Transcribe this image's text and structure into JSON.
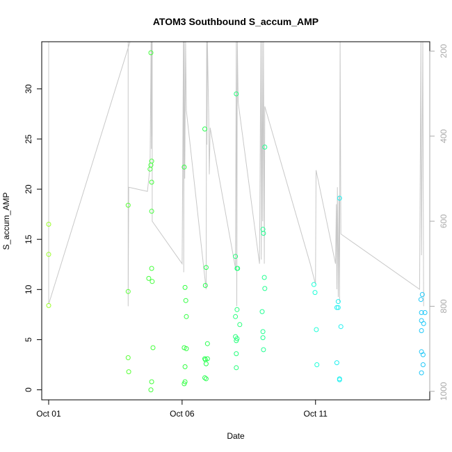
{
  "chart_data": {
    "type": "scatter",
    "title": "ATOM3 Southbound S_accum_AMP",
    "xlabel": "Date",
    "ylabel": "S_accum_AMP",
    "x_ticks": [
      {
        "label": "Oct 01",
        "value": 0
      },
      {
        "label": "Oct 06",
        "value": 5
      },
      {
        "label": "Oct 11",
        "value": 10
      }
    ],
    "y_ticks": [
      0,
      5,
      10,
      15,
      20,
      25,
      30
    ],
    "y2_ticks": [
      200,
      400,
      600,
      800,
      1000
    ],
    "xlim": [
      -0.26,
      14.28
    ],
    "ylim": [
      -1.0,
      34.7
    ],
    "y2lim": [
      1020,
      178
    ],
    "grid": false,
    "legend": "none",
    "points": [
      {
        "x": 0.0,
        "y": 16.5,
        "color": "#9aff28"
      },
      {
        "x": 0.0,
        "y": 13.5,
        "color": "#9aff28"
      },
      {
        "x": 0.0,
        "y": 8.4,
        "color": "#9aff28"
      },
      {
        "x": 2.98,
        "y": 18.4,
        "color": "#5aff38"
      },
      {
        "x": 2.98,
        "y": 9.8,
        "color": "#5aff38"
      },
      {
        "x": 2.98,
        "y": 3.2,
        "color": "#5aff38"
      },
      {
        "x": 3.0,
        "y": 1.8,
        "color": "#5aff38"
      },
      {
        "x": 3.83,
        "y": 33.6,
        "color": "#44ff3c"
      },
      {
        "x": 3.86,
        "y": 22.8,
        "color": "#44ff3c"
      },
      {
        "x": 3.83,
        "y": 22.4,
        "color": "#44ff3c"
      },
      {
        "x": 3.8,
        "y": 22.0,
        "color": "#44ff3c"
      },
      {
        "x": 3.86,
        "y": 20.7,
        "color": "#44ff3c"
      },
      {
        "x": 3.86,
        "y": 17.8,
        "color": "#44ff3c"
      },
      {
        "x": 3.86,
        "y": 12.1,
        "color": "#44ff3c"
      },
      {
        "x": 3.75,
        "y": 11.1,
        "color": "#44ff3c"
      },
      {
        "x": 3.88,
        "y": 10.8,
        "color": "#44ff3c"
      },
      {
        "x": 3.91,
        "y": 4.2,
        "color": "#44ff3c"
      },
      {
        "x": 3.86,
        "y": 0.8,
        "color": "#44ff3c"
      },
      {
        "x": 3.83,
        "y": 0.0,
        "color": "#44ff3c"
      },
      {
        "x": 5.08,
        "y": 22.2,
        "color": "#30ff40"
      },
      {
        "x": 5.11,
        "y": 10.2,
        "color": "#30ff40"
      },
      {
        "x": 5.14,
        "y": 8.9,
        "color": "#30ff40"
      },
      {
        "x": 5.16,
        "y": 7.3,
        "color": "#30ff40"
      },
      {
        "x": 5.08,
        "y": 4.2,
        "color": "#30ff40"
      },
      {
        "x": 5.16,
        "y": 4.1,
        "color": "#30ff40"
      },
      {
        "x": 5.11,
        "y": 2.3,
        "color": "#30ff40"
      },
      {
        "x": 5.11,
        "y": 0.8,
        "color": "#30ff40"
      },
      {
        "x": 5.08,
        "y": 0.6,
        "color": "#30ff40"
      },
      {
        "x": 5.85,
        "y": 26.0,
        "color": "#28ff50"
      },
      {
        "x": 5.9,
        "y": 12.2,
        "color": "#28ff50"
      },
      {
        "x": 5.87,
        "y": 10.4,
        "color": "#28ff50"
      },
      {
        "x": 5.95,
        "y": 4.6,
        "color": "#28ff50"
      },
      {
        "x": 5.85,
        "y": 3.1,
        "color": "#28ff50"
      },
      {
        "x": 5.87,
        "y": 3.0,
        "color": "#28ff50"
      },
      {
        "x": 5.95,
        "y": 3.1,
        "color": "#28ff50"
      },
      {
        "x": 5.9,
        "y": 2.6,
        "color": "#28ff50"
      },
      {
        "x": 5.85,
        "y": 1.2,
        "color": "#28ff50"
      },
      {
        "x": 5.9,
        "y": 1.1,
        "color": "#28ff50"
      },
      {
        "x": 7.03,
        "y": 29.5,
        "color": "#24ff7a"
      },
      {
        "x": 7.0,
        "y": 13.3,
        "color": "#24ff7a"
      },
      {
        "x": 7.06,
        "y": 12.1,
        "color": "#24ff7a"
      },
      {
        "x": 7.08,
        "y": 12.1,
        "color": "#24ff7a"
      },
      {
        "x": 7.06,
        "y": 8.0,
        "color": "#24ff7a"
      },
      {
        "x": 7.0,
        "y": 7.3,
        "color": "#24ff7a"
      },
      {
        "x": 7.16,
        "y": 6.5,
        "color": "#24ff7a"
      },
      {
        "x": 7.0,
        "y": 5.3,
        "color": "#24ff7a"
      },
      {
        "x": 7.06,
        "y": 5.1,
        "color": "#24ff7a"
      },
      {
        "x": 7.03,
        "y": 4.9,
        "color": "#24ff7a"
      },
      {
        "x": 7.03,
        "y": 3.6,
        "color": "#24ff7a"
      },
      {
        "x": 7.03,
        "y": 2.2,
        "color": "#24ff7a"
      },
      {
        "x": 8.1,
        "y": 24.2,
        "color": "#22ff92"
      },
      {
        "x": 8.03,
        "y": 16.0,
        "color": "#22ff92"
      },
      {
        "x": 8.05,
        "y": 15.6,
        "color": "#22ff92"
      },
      {
        "x": 8.08,
        "y": 11.2,
        "color": "#22ff92"
      },
      {
        "x": 8.1,
        "y": 10.1,
        "color": "#22ff92"
      },
      {
        "x": 8.0,
        "y": 7.8,
        "color": "#22ff92"
      },
      {
        "x": 8.03,
        "y": 5.8,
        "color": "#22ff92"
      },
      {
        "x": 8.03,
        "y": 5.2,
        "color": "#22ff92"
      },
      {
        "x": 8.05,
        "y": 4.0,
        "color": "#22ff92"
      },
      {
        "x": 9.94,
        "y": 10.5,
        "color": "#20ffd8"
      },
      {
        "x": 9.98,
        "y": 9.7,
        "color": "#20ffd8"
      },
      {
        "x": 10.03,
        "y": 6.0,
        "color": "#20ffd8"
      },
      {
        "x": 10.05,
        "y": 2.5,
        "color": "#20ffd8"
      },
      {
        "x": 10.9,
        "y": 19.1,
        "color": "#20f0f0"
      },
      {
        "x": 10.85,
        "y": 8.8,
        "color": "#20f0f0"
      },
      {
        "x": 10.8,
        "y": 8.2,
        "color": "#20f0f0"
      },
      {
        "x": 10.85,
        "y": 8.2,
        "color": "#20f0f0"
      },
      {
        "x": 10.95,
        "y": 6.3,
        "color": "#20f0f0"
      },
      {
        "x": 10.8,
        "y": 2.7,
        "color": "#20f0f0"
      },
      {
        "x": 10.9,
        "y": 1.1,
        "color": "#20f0f0"
      },
      {
        "x": 10.9,
        "y": 1.0,
        "color": "#20f0f0"
      },
      {
        "x": 14.0,
        "y": 9.5,
        "color": "#20c8f8"
      },
      {
        "x": 13.95,
        "y": 9.0,
        "color": "#20c8f8"
      },
      {
        "x": 13.97,
        "y": 7.7,
        "color": "#20c8f8"
      },
      {
        "x": 14.1,
        "y": 7.7,
        "color": "#20c8f8"
      },
      {
        "x": 13.97,
        "y": 6.9,
        "color": "#20c8f8"
      },
      {
        "x": 14.05,
        "y": 6.6,
        "color": "#20c8f8"
      },
      {
        "x": 13.97,
        "y": 5.9,
        "color": "#20c8f8"
      },
      {
        "x": 13.97,
        "y": 3.8,
        "color": "#20c8f8"
      },
      {
        "x": 14.03,
        "y": 3.5,
        "color": "#20c8f8"
      },
      {
        "x": 14.03,
        "y": 2.5,
        "color": "#20c8f8"
      },
      {
        "x": 13.97,
        "y": 1.7,
        "color": "#20c8f8"
      }
    ],
    "trace_color": "#c8c8c8",
    "trace": [
      [
        0.0,
        178
      ],
      [
        0.0,
        795
      ],
      [
        3.05,
        178
      ],
      [
        2.98,
        178
      ],
      [
        2.98,
        500
      ],
      [
        2.98,
        800
      ],
      [
        3.0,
        520
      ],
      [
        3.7,
        530
      ],
      [
        3.8,
        470
      ],
      [
        3.84,
        178
      ],
      [
        3.85,
        430
      ],
      [
        3.86,
        178
      ],
      [
        3.87,
        400
      ],
      [
        3.88,
        178
      ],
      [
        3.88,
        600
      ],
      [
        5.0,
        700
      ],
      [
        5.05,
        178
      ],
      [
        5.06,
        720
      ],
      [
        5.08,
        178
      ],
      [
        5.1,
        500
      ],
      [
        5.13,
        178
      ],
      [
        5.16,
        340
      ],
      [
        5.9,
        760
      ],
      [
        5.92,
        178
      ],
      [
        5.93,
        420
      ],
      [
        5.95,
        178
      ],
      [
        6.0,
        360
      ],
      [
        6.02,
        490
      ],
      [
        6.05,
        380
      ],
      [
        7.0,
        710
      ],
      [
        7.03,
        178
      ],
      [
        7.05,
        800
      ],
      [
        7.07,
        178
      ],
      [
        7.1,
        320
      ],
      [
        7.9,
        700
      ],
      [
        7.95,
        178
      ],
      [
        7.97,
        690
      ],
      [
        8.0,
        178
      ],
      [
        8.02,
        600
      ],
      [
        8.05,
        178
      ],
      [
        8.08,
        700
      ],
      [
        8.1,
        330
      ],
      [
        9.8,
        700
      ],
      [
        10.0,
        748
      ],
      [
        10.02,
        480
      ],
      [
        10.75,
        700
      ],
      [
        10.78,
        560
      ],
      [
        10.8,
        760
      ],
      [
        10.82,
        520
      ],
      [
        10.85,
        778
      ],
      [
        10.88,
        540
      ],
      [
        10.9,
        790
      ],
      [
        10.92,
        178
      ],
      [
        10.95,
        630
      ],
      [
        13.9,
        760
      ],
      [
        13.95,
        178
      ],
      [
        13.97,
        680
      ],
      [
        14.02,
        178
      ],
      [
        14.05,
        800
      ]
    ]
  }
}
